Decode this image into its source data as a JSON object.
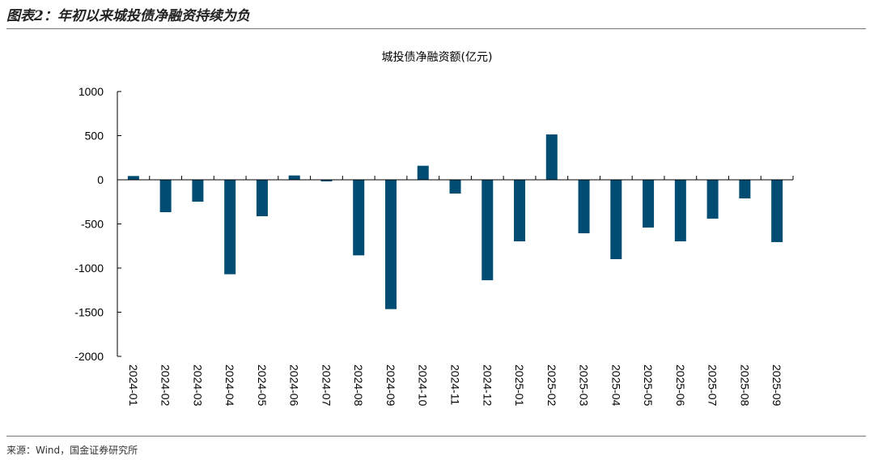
{
  "header": {
    "title": "图表2：年初以来城投债净融资持续为负"
  },
  "footer": {
    "source": "来源：Wind，国金证券研究所"
  },
  "chart_data": {
    "type": "bar",
    "title": "城投债净融资额(亿元)",
    "xlabel": "",
    "ylabel": "",
    "ylim": [
      -2000,
      1000
    ],
    "yticks": [
      1000,
      500,
      0,
      -500,
      -1000,
      -1500,
      -2000
    ],
    "grid": false,
    "color": "#004c73",
    "categories": [
      "2024-01",
      "2024-02",
      "2024-03",
      "2024-04",
      "2024-05",
      "2024-06",
      "2024-07",
      "2024-08",
      "2024-09",
      "2024-10",
      "2024-11",
      "2024-12",
      "2025-01",
      "2025-02",
      "2025-03",
      "2025-04",
      "2025-05",
      "2025-06",
      "2025-07",
      "2025-08",
      "2025-09"
    ],
    "values": [
      43,
      -367,
      -248,
      -1070,
      -413,
      49,
      -18,
      -856,
      -1465,
      159,
      -156,
      -1138,
      -697,
      514,
      -606,
      -899,
      -541,
      -697,
      -440,
      -211,
      -706
    ]
  }
}
